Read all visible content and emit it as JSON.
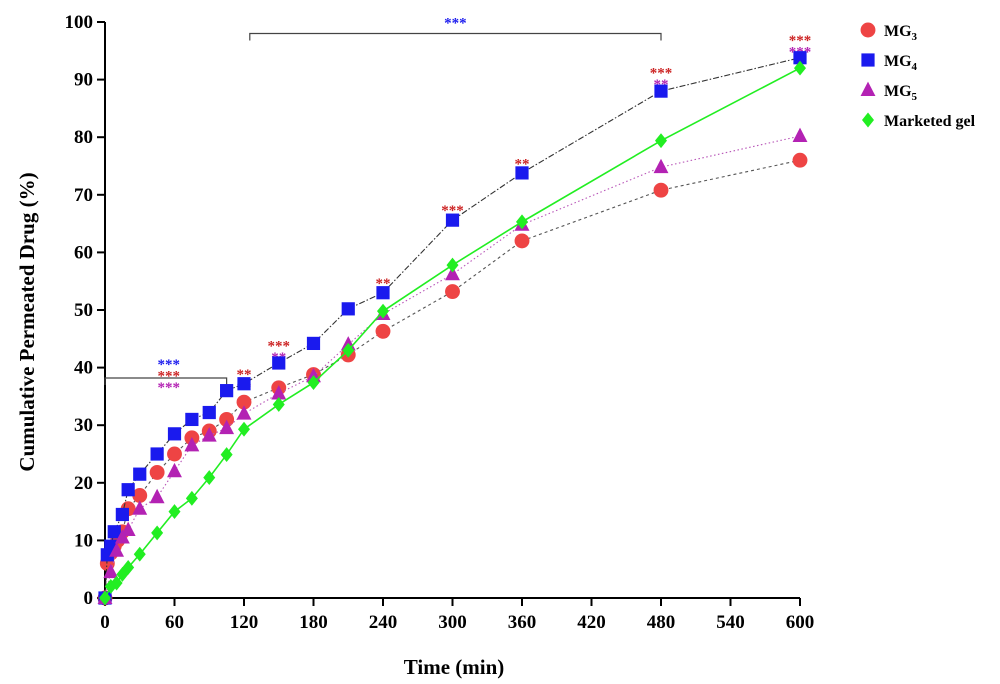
{
  "chart_data": {
    "type": "line",
    "title": "",
    "xlabel": "Time (min)",
    "ylabel": "Cumulative Permeated Drug (%)",
    "xlim": [
      0,
      600
    ],
    "ylim": [
      0,
      100
    ],
    "xticks": [
      "0",
      "60",
      "120",
      "180",
      "240",
      "300",
      "360",
      "420",
      "480",
      "540",
      "600"
    ],
    "yticks": [
      "0",
      "10",
      "20",
      "30",
      "40",
      "50",
      "60",
      "70",
      "80",
      "90",
      "100"
    ],
    "grid": false,
    "legend_position": "top-right",
    "series": [
      {
        "name": "MG",
        "sub": "3",
        "color": "#ee4444",
        "marker": "circle",
        "line": "dashed",
        "x": [
          0,
          2,
          5,
          8,
          11,
          15,
          20,
          30,
          45,
          60,
          75,
          90,
          105,
          120,
          150,
          180,
          210,
          240,
          300,
          360,
          480,
          600
        ],
        "y": [
          0,
          6,
          7.8,
          9,
          10,
          11.5,
          15.5,
          17.8,
          21.8,
          25,
          27.8,
          29,
          31,
          34,
          36.5,
          38.8,
          42.2,
          46.3,
          53.2,
          62,
          70.8,
          76
        ]
      },
      {
        "name": "MG",
        "sub": "4",
        "color": "#1a1aee",
        "marker": "square",
        "line": "dashdot",
        "x": [
          0,
          2,
          5,
          8,
          15,
          20,
          30,
          45,
          60,
          75,
          90,
          105,
          120,
          150,
          180,
          210,
          240,
          300,
          360,
          480,
          600
        ],
        "y": [
          0,
          7.5,
          9,
          11.5,
          14.5,
          18.8,
          21.5,
          25,
          28.5,
          31,
          32.2,
          36,
          37.2,
          40.8,
          44.2,
          50.2,
          53,
          65.6,
          73.8,
          88,
          93.8
        ]
      },
      {
        "name": "MG",
        "sub": "5",
        "color": "#b322b3",
        "marker": "triangle",
        "line": "dotted",
        "x": [
          0,
          5,
          10,
          15,
          20,
          30,
          45,
          60,
          75,
          90,
          105,
          120,
          150,
          180,
          210,
          240,
          300,
          360,
          480,
          600
        ],
        "y": [
          0,
          4.5,
          8.2,
          10.5,
          11.8,
          15.5,
          17.5,
          22,
          26.5,
          28.2,
          29.5,
          32,
          35.5,
          38.5,
          44,
          49.3,
          56.2,
          64.8,
          74.8,
          80.2
        ]
      },
      {
        "name": "Marketed gel",
        "sub": "",
        "color": "#22ee22",
        "marker": "diamond",
        "line": "solid",
        "x": [
          0,
          5,
          10,
          15,
          20,
          30,
          45,
          60,
          75,
          90,
          105,
          120,
          150,
          180,
          210,
          240,
          300,
          360,
          480,
          600
        ],
        "y": [
          0,
          2,
          2.6,
          4.1,
          5.3,
          7.6,
          11.3,
          15,
          17.3,
          20.9,
          24.9,
          29.3,
          33.6,
          37.4,
          43,
          49.8,
          57.8,
          65.3,
          79.4,
          92
        ]
      }
    ],
    "significance_brackets": [
      {
        "x_from": 0,
        "x_to": 105,
        "y": 38.2,
        "stars": []
      },
      {
        "x_from": 125,
        "x_to": 480,
        "y": 98,
        "stars": [
          {
            "text": "***",
            "color": "#1a1aee"
          }
        ]
      }
    ],
    "significance_labels": [
      {
        "x": 55,
        "y": 41.0,
        "text": "***",
        "color": "#1a1aee"
      },
      {
        "x": 55,
        "y": 39.0,
        "text": "***",
        "color": "#cc2222"
      },
      {
        "x": 55,
        "y": 37.0,
        "text": "***",
        "color": "#b322b3"
      },
      {
        "x": 120,
        "y": 39.2,
        "text": "**",
        "color": "#cc2222"
      },
      {
        "x": 120,
        "y": 37.0,
        "text": "**",
        "color": "#b322b3"
      },
      {
        "x": 150,
        "y": 44.2,
        "text": "***",
        "color": "#cc2222"
      },
      {
        "x": 150,
        "y": 42.2,
        "text": "**",
        "color": "#b322b3"
      },
      {
        "x": 240,
        "y": 55.0,
        "text": "**",
        "color": "#cc2222"
      },
      {
        "x": 300,
        "y": 67.7,
        "text": "***",
        "color": "#cc2222"
      },
      {
        "x": 360,
        "y": 75.8,
        "text": "**",
        "color": "#cc2222"
      },
      {
        "x": 480,
        "y": 91.6,
        "text": "***",
        "color": "#cc2222"
      },
      {
        "x": 480,
        "y": 89.6,
        "text": "**",
        "color": "#b322b3"
      },
      {
        "x": 600,
        "y": 97.2,
        "text": "***",
        "color": "#cc2222"
      },
      {
        "x": 600,
        "y": 95.2,
        "text": "***",
        "color": "#b322b3"
      }
    ]
  }
}
